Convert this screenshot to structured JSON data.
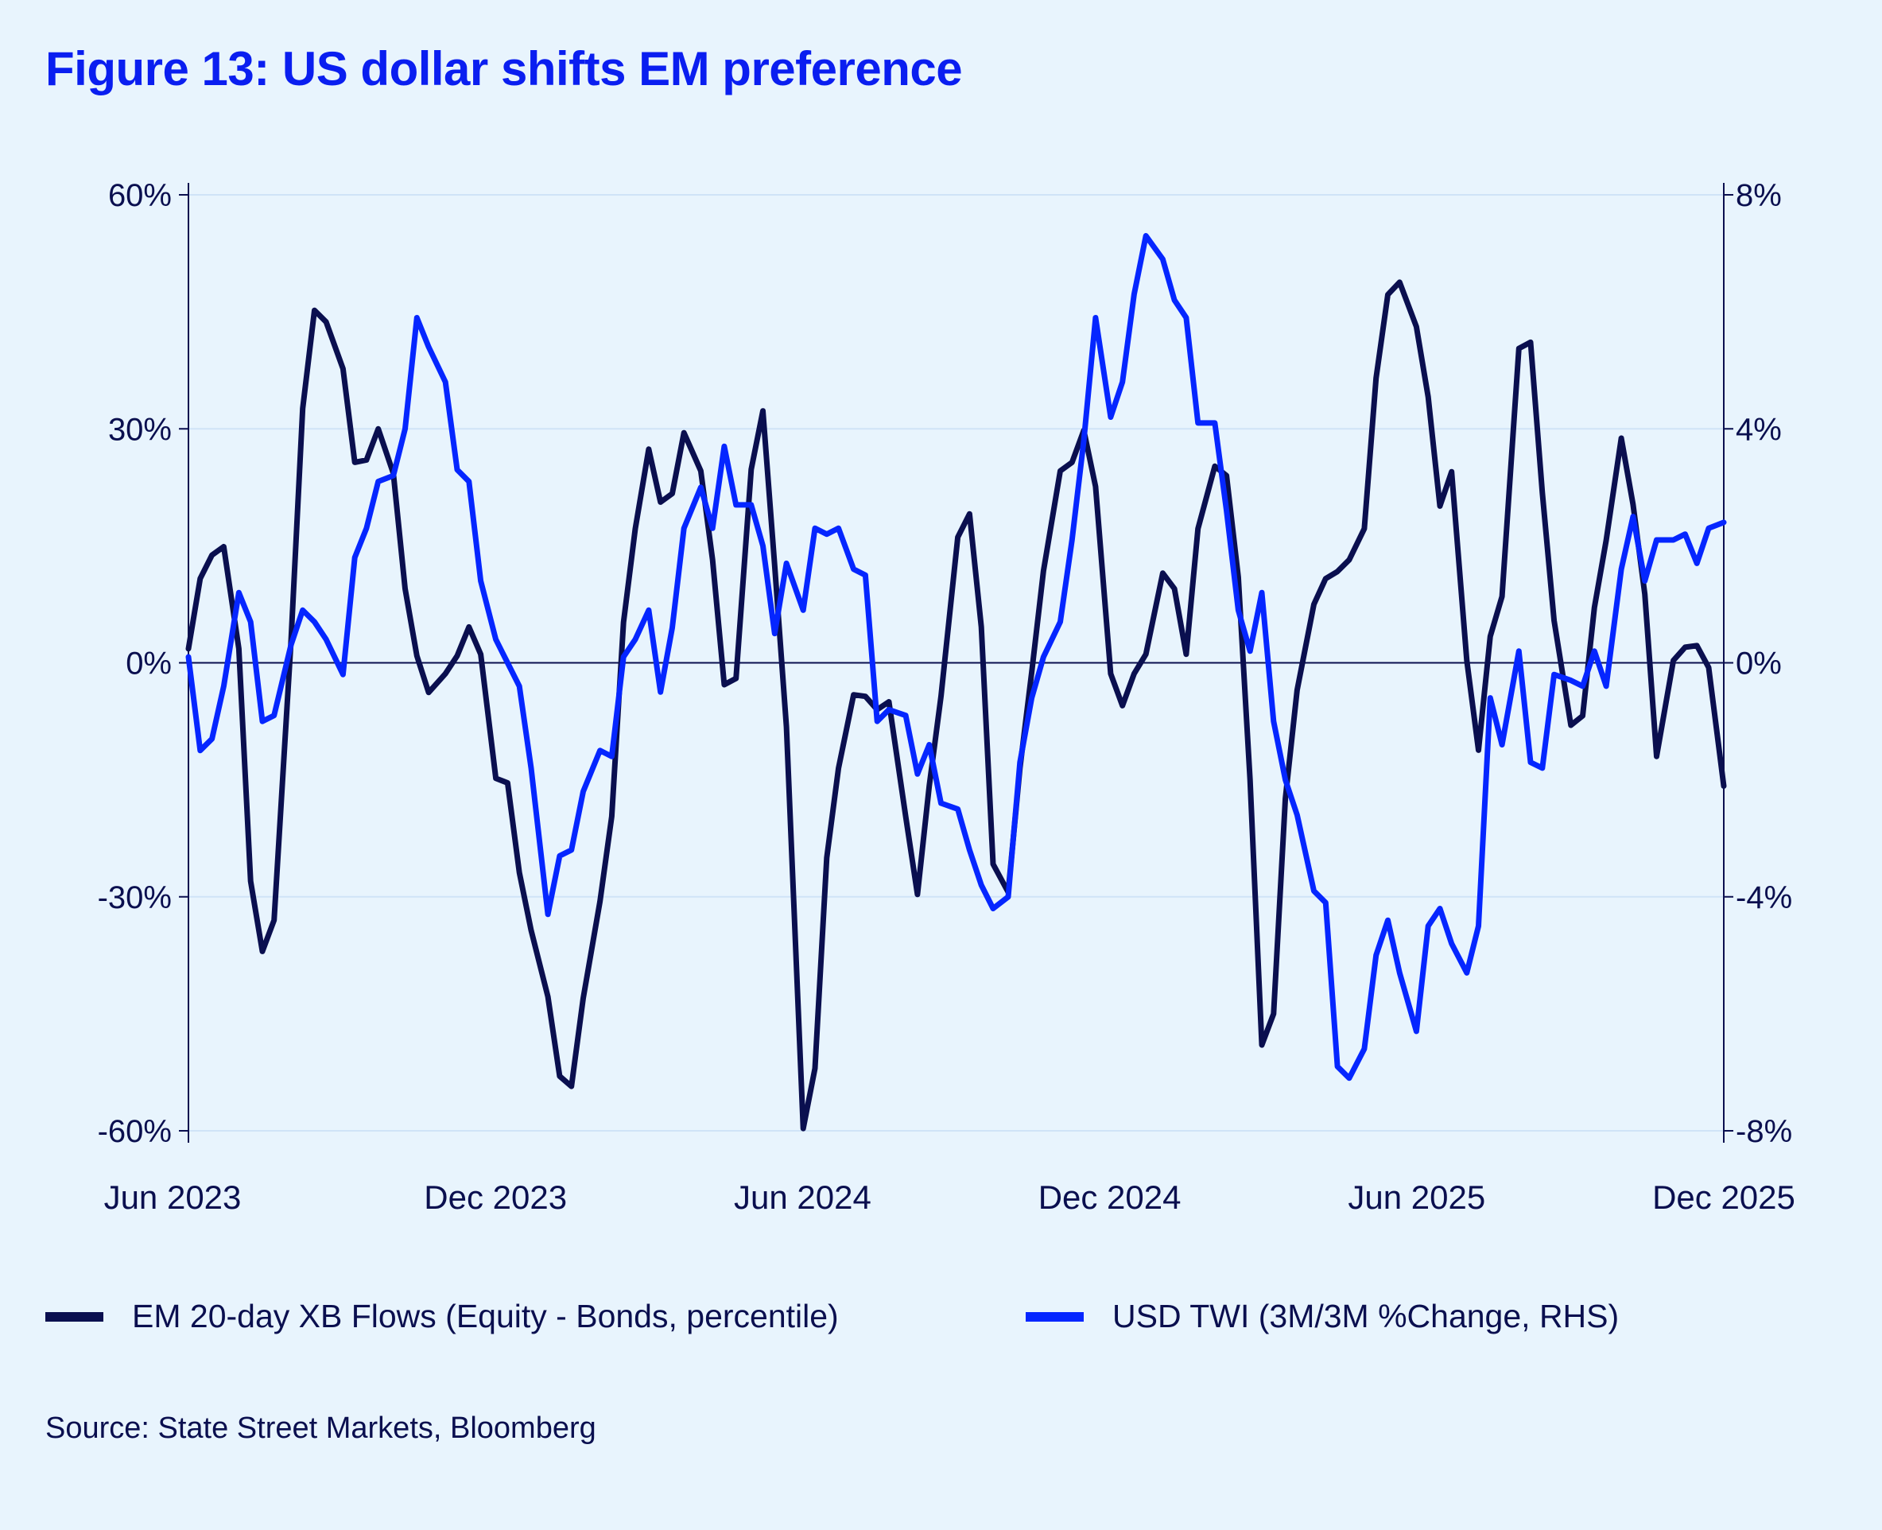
{
  "title": "Figure 13: US dollar shifts EM preference",
  "source": "Source: State Street Markets, Bloomberg",
  "colors": {
    "background": "#e8f4fd",
    "title": "#0a1ef0",
    "em_flows": "#0a0f4f",
    "usd_twi": "#0526ff",
    "grid": "#cfe3f7"
  },
  "chart_data": {
    "type": "line",
    "title": "Figure 13: US dollar shifts EM preference",
    "grid": true,
    "legend_position": "bottom",
    "x_range": [
      "2023-06-01",
      "2025-12-01"
    ],
    "x_ticks": [
      "Jun 2023",
      "Dec 2023",
      "Jun 2024",
      "Dec 2024",
      "Jun 2025",
      "Dec 2025"
    ],
    "y_left": {
      "range": [
        -60,
        60
      ],
      "ticks": [
        "60%",
        "30%",
        "0%",
        "-30%",
        "-60%"
      ],
      "tick_values": [
        60,
        30,
        0,
        -30,
        -60
      ]
    },
    "y_right": {
      "range": [
        -8,
        8
      ],
      "ticks": [
        "8%",
        "4%",
        "0%",
        "-4%",
        "-8%"
      ],
      "tick_values": [
        8,
        4,
        0,
        -4,
        -8
      ]
    },
    "x": [
      "2023-06-01",
      "2023-06-08",
      "2023-06-15",
      "2023-06-22",
      "2023-07-01",
      "2023-07-08",
      "2023-07-15",
      "2023-07-22",
      "2023-08-01",
      "2023-08-08",
      "2023-08-15",
      "2023-08-22",
      "2023-09-01",
      "2023-09-08",
      "2023-09-15",
      "2023-09-22",
      "2023-10-01",
      "2023-10-08",
      "2023-10-15",
      "2023-10-22",
      "2023-11-01",
      "2023-11-08",
      "2023-11-15",
      "2023-11-22",
      "2023-12-01",
      "2023-12-08",
      "2023-12-15",
      "2023-12-22",
      "2024-01-01",
      "2024-01-08",
      "2024-01-15",
      "2024-01-22",
      "2024-02-01",
      "2024-02-08",
      "2024-02-15",
      "2024-02-22",
      "2024-03-01",
      "2024-03-08",
      "2024-03-15",
      "2024-03-22",
      "2024-04-01",
      "2024-04-08",
      "2024-04-15",
      "2024-04-22",
      "2024-05-01",
      "2024-05-08",
      "2024-05-15",
      "2024-05-22",
      "2024-06-01",
      "2024-06-08",
      "2024-06-15",
      "2024-06-22",
      "2024-07-01",
      "2024-07-08",
      "2024-07-15",
      "2024-07-22",
      "2024-08-01",
      "2024-08-08",
      "2024-08-15",
      "2024-08-22",
      "2024-09-01",
      "2024-09-08",
      "2024-09-15",
      "2024-09-22",
      "2024-10-01",
      "2024-10-08",
      "2024-10-15",
      "2024-10-22",
      "2024-11-01",
      "2024-11-08",
      "2024-11-15",
      "2024-11-22",
      "2024-12-01",
      "2024-12-08",
      "2024-12-15",
      "2024-12-22",
      "2025-01-01",
      "2025-01-08",
      "2025-01-15",
      "2025-01-22",
      "2025-02-01",
      "2025-02-08",
      "2025-02-15",
      "2025-02-22",
      "2025-03-01",
      "2025-03-08",
      "2025-03-15",
      "2025-03-22",
      "2025-04-01",
      "2025-04-08",
      "2025-04-15",
      "2025-04-22",
      "2025-05-01",
      "2025-05-08",
      "2025-05-15",
      "2025-05-22",
      "2025-06-01",
      "2025-06-08",
      "2025-06-15",
      "2025-06-22",
      "2025-07-01",
      "2025-07-08",
      "2025-07-15",
      "2025-07-22",
      "2025-08-01",
      "2025-08-08",
      "2025-08-15",
      "2025-08-22",
      "2025-09-01",
      "2025-09-08",
      "2025-09-15",
      "2025-09-22",
      "2025-10-01",
      "2025-10-08",
      "2025-10-15",
      "2025-10-22",
      "2025-11-01",
      "2025-11-08",
      "2025-11-15",
      "2025-11-22",
      "2025-12-01"
    ],
    "series": [
      {
        "name": "EM 20-day XB Flows (Equity - Bonds, percentile)",
        "axis": "left",
        "values": [
          1.8,
          10.8,
          13.8,
          14.9,
          1.8,
          -28,
          -37,
          -33,
          2.6,
          32.6,
          45.2,
          43.7,
          37.7,
          25.7,
          26,
          30,
          24.3,
          9.5,
          0.9,
          -3.8,
          -1.4,
          0.9,
          4.6,
          1.1,
          -14.8,
          -15.4,
          -26.9,
          -34.3,
          -42.8,
          -53,
          -54.3,
          -43,
          -30.6,
          -19.7,
          5.2,
          17.2,
          27.4,
          20.6,
          21.7,
          29.5,
          24.6,
          13.2,
          -2.8,
          -2,
          24.8,
          32.3,
          12.5,
          -8.2,
          -59.7,
          -52,
          -25,
          -13.5,
          -4.1,
          -4.3,
          -6,
          -5,
          -19.7,
          -29.7,
          -15.8,
          -4.3,
          16.1,
          19.1,
          4.6,
          -25.8,
          -29.4,
          -13.5,
          -1.2,
          11.8,
          24.6,
          25.7,
          29.8,
          22.6,
          -1.4,
          -5.5,
          -1.4,
          1.1,
          11.5,
          9.5,
          1.1,
          17.2,
          25.2,
          24,
          11,
          -15,
          -49,
          -45,
          -17.4,
          -3.5,
          7.5,
          10.8,
          11.7,
          13.2,
          17.2,
          36.5,
          47.2,
          48.8,
          43.1,
          34.1,
          20.1,
          24.5,
          0.3,
          -11.2,
          3.4,
          8.5,
          40.3,
          41.1,
          21.8,
          5.4,
          -8,
          -6.8,
          7.1,
          15.7,
          28.8,
          20.3,
          8.8,
          -12,
          0.3,
          2,
          2.2,
          -0.6,
          -15.8
        ]
      },
      {
        "name": "USD TWI (3M/3M %Change, RHS)",
        "axis": "right",
        "values": [
          0.1,
          -1.5,
          -1.3,
          -0.4,
          1.2,
          0.7,
          -1,
          -0.9,
          0.3,
          0.9,
          0.7,
          0.4,
          -0.2,
          1.8,
          2.3,
          3.1,
          3.2,
          4,
          5.9,
          5.4,
          4.8,
          3.3,
          3.1,
          1.4,
          0.4,
          0,
          -0.4,
          -1.8,
          -4.3,
          -3.3,
          -3.2,
          -2.2,
          -1.5,
          -1.6,
          0.1,
          0.4,
          0.9,
          -0.5,
          0.6,
          2.3,
          3,
          2.3,
          3.7,
          2.7,
          2.7,
          2,
          0.5,
          1.7,
          0.9,
          2.3,
          2.2,
          2.3,
          1.6,
          1.5,
          -1,
          -0.8,
          -0.9,
          -1.9,
          -1.4,
          -2.4,
          -2.5,
          -3.2,
          -3.8,
          -4.2,
          -4,
          -1.7,
          -0.6,
          0.1,
          0.7,
          2.1,
          3.8,
          5.9,
          4.2,
          4.8,
          6.3,
          7.3,
          6.9,
          6.2,
          5.9,
          4.1,
          4.1,
          2.6,
          0.9,
          0.2,
          1.2,
          -1,
          -2,
          -2.6,
          -3.9,
          -4.1,
          -6.9,
          -7.1,
          -6.6,
          -5,
          -4.4,
          -5.3,
          -6.3,
          -4.5,
          -4.2,
          -4.8,
          -5.3,
          -4.5,
          -0.6,
          -1.4,
          0.2,
          -1.7,
          -1.8,
          -0.2,
          -0.3,
          -0.4,
          0.2,
          -0.4,
          1.6,
          2.5,
          1.4,
          2.1,
          2.1,
          2.2,
          1.7,
          2.3,
          2.4
        ]
      }
    ]
  }
}
